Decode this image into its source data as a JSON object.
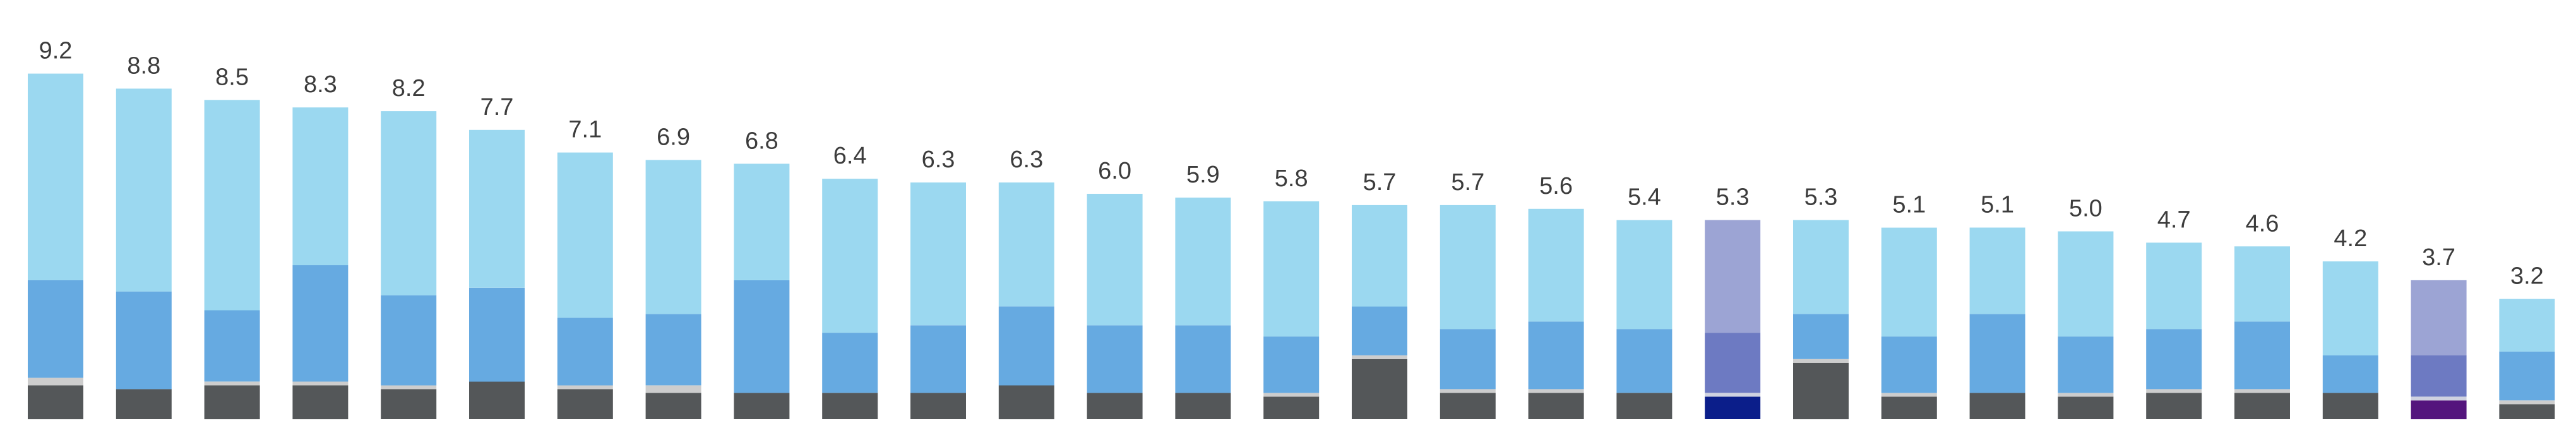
{
  "chart_data": {
    "type": "bar",
    "stacked": true,
    "title": "",
    "xlabel": "",
    "ylabel": "",
    "ylim": [
      0,
      10
    ],
    "grid": false,
    "legend": "none",
    "totals": [
      "9.2",
      "8.8",
      "8.5",
      "8.3",
      "8.2",
      "7.7",
      "7.1",
      "6.9",
      "6.8",
      "6.4",
      "6.3",
      "6.3",
      "6.0",
      "5.9",
      "5.8",
      "5.7",
      "5.7",
      "5.6",
      "5.4",
      "5.3",
      "5.3",
      "5.1",
      "5.1",
      "5.0",
      "4.7",
      "4.6",
      "4.2",
      "3.7",
      "3.2"
    ],
    "series": [
      {
        "values": [
          0.9,
          0.8,
          0.9,
          0.9,
          0.8,
          1.0,
          0.8,
          0.7,
          0.7,
          0.7,
          0.7,
          0.9,
          0.7,
          0.7,
          0.6,
          1.6,
          0.7,
          0.7,
          0.7,
          0.6,
          1.5,
          0.6,
          0.7,
          0.6,
          0.7,
          0.7,
          0.7,
          0.5,
          0.4
        ]
      },
      {
        "values": [
          0.2,
          0.0,
          0.1,
          0.1,
          0.1,
          0.0,
          0.1,
          0.2,
          0.0,
          0.0,
          0.0,
          0.0,
          0.0,
          0.0,
          0.1,
          0.1,
          0.1,
          0.1,
          0.0,
          0.1,
          0.1,
          0.1,
          0.0,
          0.1,
          0.1,
          0.1,
          0.0,
          0.1,
          0.1
        ]
      },
      {
        "values": [
          2.6,
          2.6,
          1.9,
          3.1,
          2.4,
          2.5,
          1.8,
          1.9,
          3.0,
          1.6,
          1.8,
          2.1,
          1.8,
          1.8,
          1.5,
          1.3,
          1.6,
          1.8,
          1.7,
          1.6,
          1.2,
          1.5,
          2.1,
          1.5,
          1.6,
          1.8,
          1.0,
          1.1,
          1.3
        ]
      },
      {
        "values": [
          5.5,
          5.4,
          5.6,
          4.2,
          4.9,
          4.2,
          4.4,
          4.1,
          3.1,
          4.1,
          3.8,
          3.3,
          3.5,
          3.4,
          3.6,
          2.7,
          3.3,
          3.0,
          2.9,
          3.0,
          2.5,
          2.9,
          2.3,
          2.8,
          2.3,
          2.0,
          2.5,
          2.0,
          1.4
        ]
      }
    ],
    "colors": {
      "bottom": "#545759",
      "thin": "#cdcdcd",
      "middle": "#66aae1",
      "top": "#9bd8f0",
      "label": "#3c3c3c"
    },
    "highlight_colors": {
      "19": {
        "bottom": "#0b1e8a",
        "thin": "#cfd2e0",
        "middle": "#6d7ac2",
        "top": "#9ca4d4"
      },
      "27": {
        "bottom": "#54157d",
        "thin": "#cfd2e0",
        "middle": "#6d7ac2",
        "top": "#9ca4d4"
      }
    }
  }
}
